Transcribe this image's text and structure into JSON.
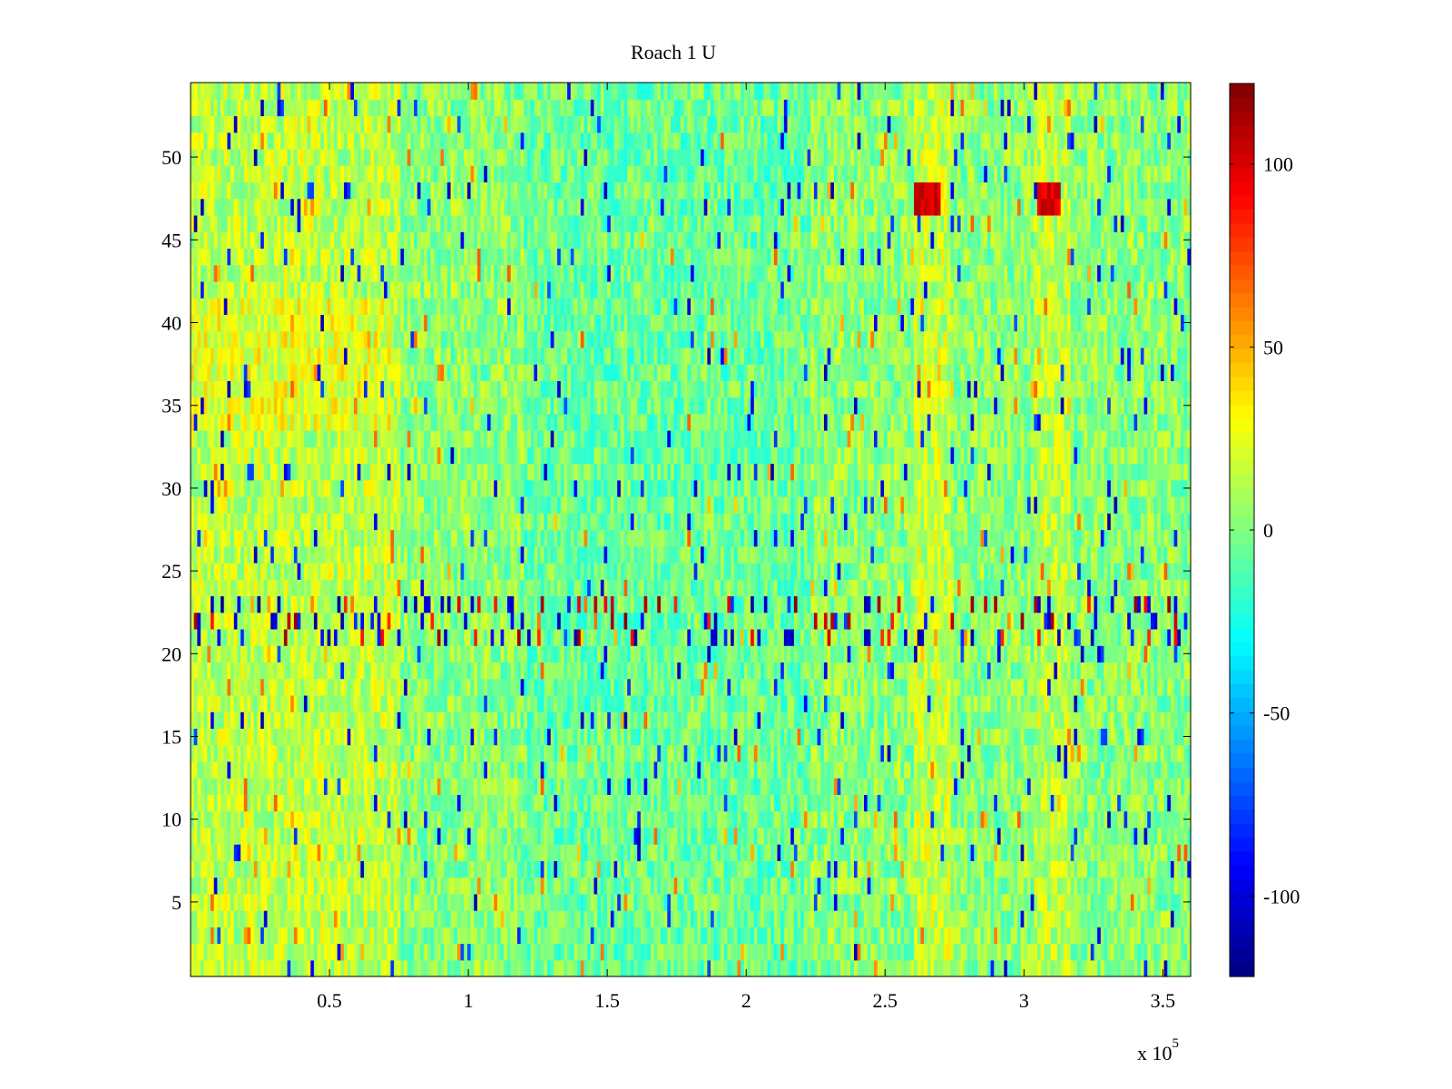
{
  "chart_data": {
    "type": "heatmap",
    "title": "Roach 1 U",
    "xlabel": "",
    "ylabel": "",
    "x_exponent_label": "x 10",
    "x_exponent_power": "5",
    "xlim": [
      0,
      360000
    ],
    "ylim": [
      0.5,
      54.5
    ],
    "x_ticks": [
      {
        "value": 50000,
        "label": "0.5"
      },
      {
        "value": 100000,
        "label": "1"
      },
      {
        "value": 150000,
        "label": "1.5"
      },
      {
        "value": 200000,
        "label": "2"
      },
      {
        "value": 250000,
        "label": "2.5"
      },
      {
        "value": 300000,
        "label": "3"
      },
      {
        "value": 350000,
        "label": "3.5"
      }
    ],
    "y_ticks": [
      {
        "value": 5,
        "label": "5"
      },
      {
        "value": 10,
        "label": "10"
      },
      {
        "value": 15,
        "label": "15"
      },
      {
        "value": 20,
        "label": "20"
      },
      {
        "value": 25,
        "label": "25"
      },
      {
        "value": 30,
        "label": "30"
      },
      {
        "value": 35,
        "label": "35"
      },
      {
        "value": 40,
        "label": "40"
      },
      {
        "value": 45,
        "label": "45"
      },
      {
        "value": 50,
        "label": "50"
      }
    ],
    "rows": 54,
    "colormap": "jet",
    "grid": false,
    "colorbar": {
      "clim": [
        -122,
        122
      ],
      "ticks": [
        {
          "value": 100,
          "label": "100"
        },
        {
          "value": 50,
          "label": "50"
        },
        {
          "value": 0,
          "label": "0"
        },
        {
          "value": -50,
          "label": "-50"
        },
        {
          "value": -100,
          "label": "-100"
        }
      ],
      "location": "right"
    }
  }
}
